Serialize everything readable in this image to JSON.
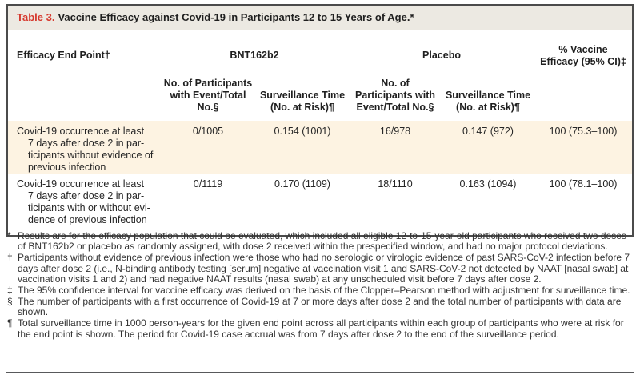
{
  "title": {
    "label": "Table 3.",
    "text": "Vaccine Efficacy against Covid-19 in Participants 12 to 15 Years of Age.*"
  },
  "header": {
    "end_point": "Efficacy End Point†",
    "group_bnt162b2": "BNT162b2",
    "group_placebo": "Placebo",
    "efficacy": "% Vaccine Efficacy (95% CI)‡",
    "sub_events": "No. of Participants with Event/Total No.§",
    "sub_surveillance": "Surveillance Time (No. at Risk)¶"
  },
  "rows": [
    {
      "end_point": "Covid-19 occurrence at least 7 days after dose 2 in participants without evidence of previous infection",
      "end_point_lines": [
        "Covid-19 occurrence at least",
        "7 days after dose 2 in par-",
        "ticipants without evidence of",
        "previous infection"
      ],
      "bnt162b2": {
        "events_total": "0/1005",
        "surveillance_time": "0.154 (1001)"
      },
      "placebo": {
        "events_total": "16/978",
        "surveillance_time": "0.147 (972)"
      },
      "vaccine_efficacy": "100 (75.3–100)"
    },
    {
      "end_point": "Covid-19 occurrence at least 7 days after dose 2 in participants with or without evidence of previous infection",
      "end_point_lines": [
        "Covid-19 occurrence at least",
        "7 days after dose 2 in par-",
        "ticipants with or without evi-",
        "dence of previous infection"
      ],
      "bnt162b2": {
        "events_total": "0/1119",
        "surveillance_time": "0.170 (1109)"
      },
      "placebo": {
        "events_total": "18/1110",
        "surveillance_time": "0.163 (1094)"
      },
      "vaccine_efficacy": "100 (78.1–100)"
    }
  ],
  "footnotes": [
    {
      "marker": "*",
      "text": "Results are for the efficacy population that could be evaluated, which included all eligible 12-to-15-year-old participants who received two doses of BNT162b2 or placebo as randomly assigned, with dose 2 received within the prespecified window, and had no major protocol deviations."
    },
    {
      "marker": "†",
      "text": "Participants without evidence of previous infection were those who had no serologic or virologic evidence of past SARS-CoV-2 infection before 7 days after dose 2 (i.e., N-binding antibody testing [serum] negative at vaccination visit 1 and SARS-CoV-2 not detected by NAAT [nasal swab] at vaccination visits 1 and 2) and had negative NAAT results (nasal swab) at any unscheduled visit before 7 days after dose 2."
    },
    {
      "marker": "‡",
      "text": "The 95% confidence interval for vaccine efficacy was derived on the basis of the Clopper–Pearson method with adjustment for surveillance time."
    },
    {
      "marker": "§",
      "text": "The number of participants with a first occurrence of Covid-19 at 7 or more days after dose 2 and the total number of participants with data are shown."
    },
    {
      "marker": "¶",
      "text": "Total surveillance time in 1000 person-years for the given end point across all participants within each group of participants who were at risk for the end point is shown. The period for Covid-19 case accrual was from 7 days after dose 2 to the end of the surveillance period."
    }
  ],
  "colors": {
    "accent_red": "#d6382d",
    "row_highlight": "#fdf3e2",
    "title_bar_background": "#ece9e2",
    "box_border": "#4b4b4b"
  }
}
